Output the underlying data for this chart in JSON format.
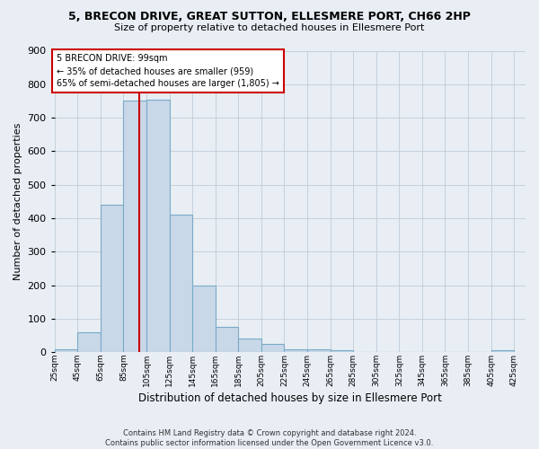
{
  "title": "5, BRECON DRIVE, GREAT SUTTON, ELLESMERE PORT, CH66 2HP",
  "subtitle": "Size of property relative to detached houses in Ellesmere Port",
  "xlabel": "Distribution of detached houses by size in Ellesmere Port",
  "ylabel": "Number of detached properties",
  "footer_line1": "Contains HM Land Registry data © Crown copyright and database right 2024.",
  "footer_line2": "Contains public sector information licensed under the Open Government Licence v3.0.",
  "bin_edges": [
    25,
    45,
    65,
    85,
    105,
    125,
    145,
    165,
    185,
    205,
    225,
    245,
    265,
    285,
    305,
    325,
    345,
    365,
    385,
    405,
    425
  ],
  "bin_labels": [
    "25sqm",
    "45sqm",
    "65sqm",
    "85sqm",
    "105sqm",
    "125sqm",
    "145sqm",
    "165sqm",
    "185sqm",
    "205sqm",
    "225sqm",
    "245sqm",
    "265sqm",
    "285sqm",
    "305sqm",
    "325sqm",
    "345sqm",
    "365sqm",
    "385sqm",
    "405sqm",
    "425sqm"
  ],
  "bar_heights": [
    10,
    60,
    440,
    750,
    755,
    410,
    200,
    75,
    40,
    25,
    10,
    10,
    5,
    0,
    0,
    0,
    0,
    0,
    0,
    5,
    0
  ],
  "bar_color": "#c8d8e8",
  "bar_edge_color": "#7aaac8",
  "property_line_x": 99,
  "property_line_color": "#cc0000",
  "annotation_text": "5 BRECON DRIVE: 99sqm\n← 35% of detached houses are smaller (959)\n65% of semi-detached houses are larger (1,805) →",
  "annotation_box_color": "#ffffff",
  "annotation_box_edge_color": "#cc0000",
  "ylim": [
    0,
    900
  ],
  "grid_color": "#c0ccd8",
  "background_color": "#e8eef4",
  "plot_bg_color": "#e8eef4"
}
